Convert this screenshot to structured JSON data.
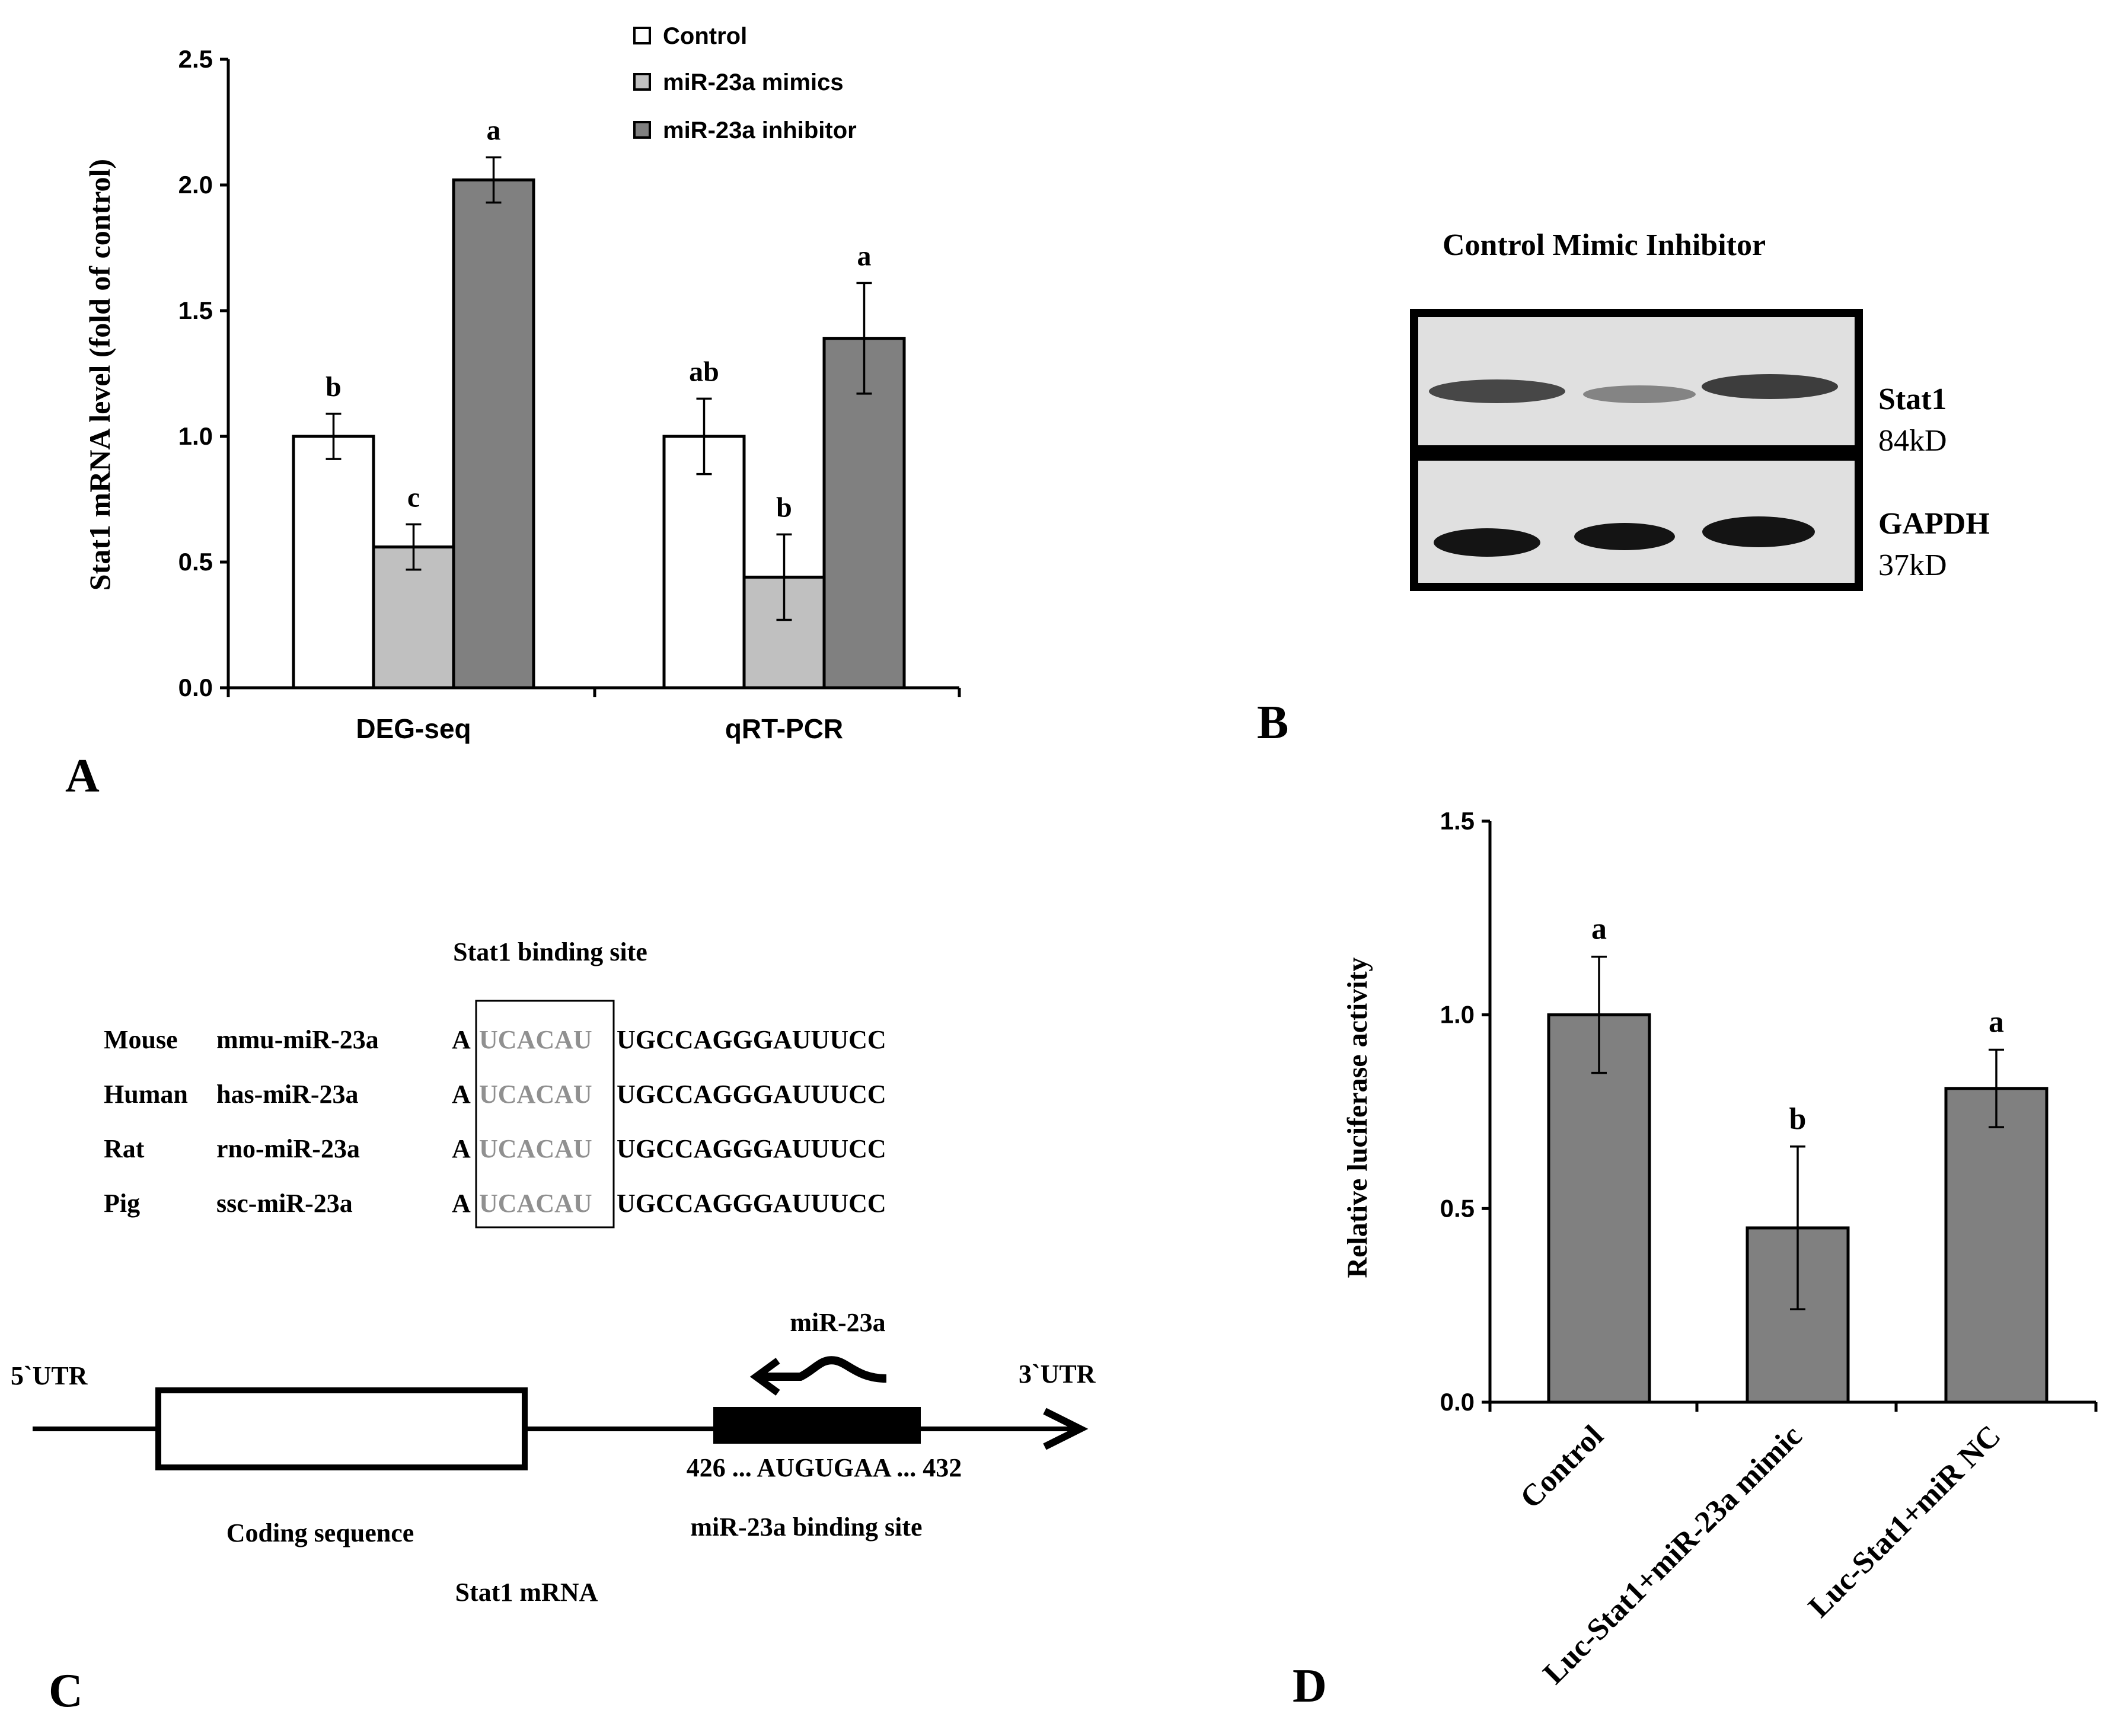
{
  "colors": {
    "control": "#ffffff",
    "mimics": "#c0c0c0",
    "inhibitor": "#808080",
    "panel_d_bar": "#808080",
    "highlight_seq": "#909090",
    "blot_background": "#e0e0e0",
    "blot_band": "#141414"
  },
  "chart_data": [
    {
      "panel": "A",
      "type": "bar",
      "ylabel": "Stat1 mRNA level (fold of control)",
      "xlabel": "",
      "ylim": [
        0,
        2.5
      ],
      "yticks": [
        "0.0",
        "0.5",
        "1.0",
        "1.5",
        "2.0",
        "2.5"
      ],
      "grid": false,
      "legend_position": "top-center",
      "categories": [
        "DEG-seq",
        "qRT-PCR"
      ],
      "series": [
        {
          "name": "Control",
          "values": [
            1.0,
            1.0
          ],
          "errors": [
            0.09,
            0.15
          ],
          "letters": [
            "b",
            "ab"
          ]
        },
        {
          "name": "miR-23a mimics",
          "values": [
            0.56,
            0.44
          ],
          "errors": [
            0.09,
            0.17
          ],
          "letters": [
            "c",
            "b"
          ]
        },
        {
          "name": "miR-23a inhibitor",
          "values": [
            2.02,
            1.39
          ],
          "errors": [
            0.09,
            0.22
          ],
          "letters": [
            "a",
            "a"
          ]
        }
      ]
    },
    {
      "panel": "D",
      "type": "bar",
      "ylabel": "Relative luciferase activity",
      "xlabel": "",
      "ylim": [
        0,
        1.5
      ],
      "yticks": [
        "0.0",
        "0.5",
        "1.0",
        "1.5"
      ],
      "grid": false,
      "categories": [
        "Control",
        "Luc-Stat1+miR-23a mimic",
        "Luc-Stat1+miR NC"
      ],
      "values": [
        1.0,
        0.45,
        0.81
      ],
      "errors": [
        0.15,
        0.21,
        0.1
      ],
      "letters": [
        "a",
        "b",
        "a"
      ]
    }
  ],
  "panels": {
    "a_label": "A",
    "b_label": "B",
    "c_label": "C",
    "d_label": "D"
  },
  "blot": {
    "lanes_header": "Control Mimic Inhibitor",
    "rows": [
      {
        "name": "Stat1",
        "size": "84kD"
      },
      {
        "name": "GAPDH",
        "size": "37kD"
      }
    ]
  },
  "sequence": {
    "title": "Stat1 binding site",
    "rows": [
      {
        "species": "Mouse",
        "mirna": "mmu-miR-23a",
        "prefix": "A",
        "site": "UCACAU",
        "rest": "UGCCAGGGAUUUCC"
      },
      {
        "species": "Human",
        "mirna": "has-miR-23a",
        "prefix": "A",
        "site": "UCACAU",
        "rest": "UGCCAGGGAUUUCC"
      },
      {
        "species": "Rat",
        "mirna": "rno-miR-23a",
        "prefix": "A",
        "site": "UCACAU",
        "rest": "UGCCAGGGAUUUCC"
      },
      {
        "species": "Pig",
        "mirna": "ssc-miR-23a",
        "prefix": "A",
        "site": "UCACAU",
        "rest": "UGCCAGGGAUUUCC"
      }
    ]
  },
  "mrna": {
    "utr5": "5`UTR",
    "utr3": "3`UTR",
    "mirna_label": "miR-23a",
    "binding_range": "426 ... AUGUGAA ... 432",
    "coding_label": "Coding sequence",
    "binding_label": "miR-23a binding site",
    "mrna_label": "Stat1 mRNA"
  }
}
